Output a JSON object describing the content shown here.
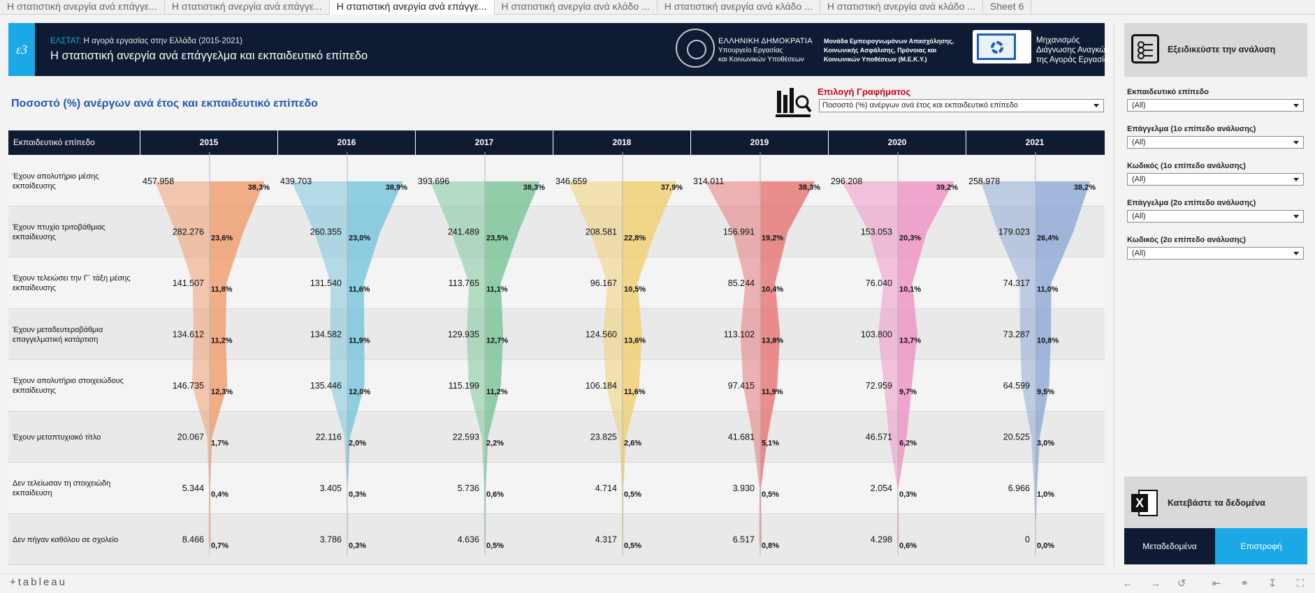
{
  "tabs": [
    {
      "label": "Η στατιστική ανεργία ανά επάγγε...",
      "active": false
    },
    {
      "label": "Η στατιστική ανεργία ανά επάγγε...",
      "active": false
    },
    {
      "label": "Η στατιστική ανεργία ανά επάγγε...",
      "active": true
    },
    {
      "label": "Η στατιστική ανεργία ανά κλάδο ...",
      "active": false
    },
    {
      "label": "Η στατιστική ανεργία ανά κλάδο ...",
      "active": false
    },
    {
      "label": "Η στατιστική ανεργία ανά κλάδο ...",
      "active": false
    },
    {
      "label": "Sheet 6",
      "active": false
    }
  ],
  "header": {
    "logo_text": "ε3",
    "kicker_source": "ΕΛΣΤΑΤ:",
    "kicker_text": "Η αγορά εργασίας στην Ελλάδα (2015-2021)",
    "title": "Η στατιστική ανεργία ανά επάγγελμα και εκπαιδευτικό επίπεδο",
    "ministry_line1": "ΕΛΛΗΝΙΚΗ ΔΗΜΟΚΡΑΤΙΑ",
    "ministry_line2": "Υπουργείο Εργασίας",
    "ministry_line3": "και Κοινωνικών Υποθέσεων",
    "meky_line1": "Μονάδα Εμπειρογνωμόνων Απασχόλησης,",
    "meky_line2": "Κοινωνικής Ασφάλισης, Πρόνοιας και",
    "meky_line3": "Κοινωνικών Υποθέσεων (Μ.Ε.Κ.Υ.)",
    "mech_line1": "Μηχανισμός",
    "mech_line2": "Διάγνωσης Αναγκών",
    "mech_line3": "της Αγοράς Εργασίας"
  },
  "section_title": "Ποσοστό (%) ανέργων ανά έτος και εκπαιδευτικό επίπεδο",
  "chart_selector": {
    "label": "Επιλογή Γραφήματος",
    "value": "Ποσοστό (%) ανέργων ανά έτος και εκπαιδευτικό επίπεδο"
  },
  "table_header": {
    "first": "Εκπαιδευτικό επίπεδο"
  },
  "chart_data": {
    "type": "table",
    "years": [
      "2015",
      "2016",
      "2017",
      "2018",
      "2019",
      "2020",
      "2021"
    ],
    "colors": [
      "#f0a072",
      "#7cc6dc",
      "#7fc69a",
      "#f1d077",
      "#e67a7a",
      "#ef97c8",
      "#92acd6"
    ],
    "levels": [
      {
        "label": "Έχουν απολυτήριο μέσης εκπαίδευσης",
        "counts": [
          "457.958",
          "439.703",
          "393.696",
          "346.659",
          "314.011",
          "296.208",
          "258.978"
        ],
        "pcts": [
          "38,3%",
          "38,9%",
          "38,3%",
          "37,9%",
          "38,3%",
          "39,2%",
          "38,2%"
        ],
        "pct_values": [
          38.3,
          38.9,
          38.3,
          37.9,
          38.3,
          39.2,
          38.2
        ]
      },
      {
        "label": "Έχουν πτυχίο τριτοβάθμιας εκπαίδευσης",
        "counts": [
          "282.276",
          "260.355",
          "241.489",
          "208.581",
          "156.991",
          "153.053",
          "179.023"
        ],
        "pcts": [
          "23,6%",
          "23,0%",
          "23,5%",
          "22,8%",
          "19,2%",
          "20,3%",
          "26,4%"
        ],
        "pct_values": [
          23.6,
          23.0,
          23.5,
          22.8,
          19.2,
          20.3,
          26.4
        ]
      },
      {
        "label": "Έχουν τελειώσει την Γ΄ τάξη μέσης εκπαίδευσης",
        "counts": [
          "141.507",
          "131.540",
          "113.765",
          "96.167",
          "85.244",
          "76.040",
          "74.317"
        ],
        "pcts": [
          "11,8%",
          "11,6%",
          "11,1%",
          "10,5%",
          "10,4%",
          "10,1%",
          "11,0%"
        ],
        "pct_values": [
          11.8,
          11.6,
          11.1,
          10.5,
          10.4,
          10.1,
          11.0
        ]
      },
      {
        "label": "Έχουν μεταδευτεροβάθμια επαγγελματική κατάρτιση",
        "counts": [
          "134.612",
          "134.582",
          "129.935",
          "124.560",
          "113.102",
          "103.800",
          "73.287"
        ],
        "pcts": [
          "11,2%",
          "11,9%",
          "12,7%",
          "13,6%",
          "13,8%",
          "13,7%",
          "10,8%"
        ],
        "pct_values": [
          11.2,
          11.9,
          12.7,
          13.6,
          13.8,
          13.7,
          10.8
        ]
      },
      {
        "label": "Έχουν απολυτήριο στοιχειώδους εκπαίδευσης",
        "counts": [
          "146.735",
          "135.446",
          "115.199",
          "106.184",
          "97.415",
          "72.959",
          "64.599"
        ],
        "pcts": [
          "12,3%",
          "12,0%",
          "11,2%",
          "11,6%",
          "11,9%",
          "9,7%",
          "9,5%"
        ],
        "pct_values": [
          12.3,
          12.0,
          11.2,
          11.6,
          11.9,
          9.7,
          9.5
        ]
      },
      {
        "label": "Έχουν μεταπτυχιακό τίτλο",
        "counts": [
          "20.067",
          "22.116",
          "22.593",
          "23.825",
          "41.681",
          "46.571",
          "20.525"
        ],
        "pcts": [
          "1,7%",
          "2,0%",
          "2,2%",
          "2,6%",
          "5,1%",
          "6,2%",
          "3,0%"
        ],
        "pct_values": [
          1.7,
          2.0,
          2.2,
          2.6,
          5.1,
          6.2,
          3.0
        ]
      },
      {
        "label": "Δεν τελείωσαν τη στοιχειώδη εκπαίδευση",
        "counts": [
          "5.344",
          "3.405",
          "5.736",
          "4.714",
          "3.930",
          "2.054",
          "6.966"
        ],
        "pcts": [
          "0,4%",
          "0,3%",
          "0,6%",
          "0,5%",
          "0,5%",
          "0,3%",
          "1,0%"
        ],
        "pct_values": [
          0.4,
          0.3,
          0.6,
          0.5,
          0.5,
          0.3,
          1.0
        ]
      },
      {
        "label": "Δεν πήγαν καθόλου σε σχολείο",
        "counts": [
          "8.466",
          "3.786",
          "4.636",
          "4.317",
          "6.517",
          "4.298",
          "0"
        ],
        "pcts": [
          "0,7%",
          "0,3%",
          "0,5%",
          "0,5%",
          "0,8%",
          "0,6%",
          "0,0%"
        ],
        "pct_values": [
          0.7,
          0.3,
          0.5,
          0.5,
          0.8,
          0.6,
          0.0
        ]
      }
    ]
  },
  "panel": {
    "refine_label": "Εξειδικεύστε την ανάλυση",
    "filters": [
      {
        "label": "Εκπαιδευτικό επίπεδο",
        "value": "(All)"
      },
      {
        "label": "Επάγγελμα (1ο επίπεδο ανάλυσης)",
        "value": "(All)"
      },
      {
        "label": "Κωδικός (1ο επίπεδο ανάλυσης)",
        "value": "(All)"
      },
      {
        "label": "Επάγγελμα (2ο επίπεδο ανάλυσης)",
        "value": "(All)"
      },
      {
        "label": "Κωδικός (2ο επίπεδο ανάλυσης)",
        "value": "(All)"
      }
    ],
    "download_label": "Κατεβάστε τα δεδομένα",
    "metadata_label": "Μεταδεδομένα",
    "back_label": "Επιστροφή"
  },
  "bottombar": {
    "logo": "+tableau",
    "icons": [
      "undo-icon",
      "redo-icon",
      "revert-icon",
      "reset-icon",
      "share-icon",
      "download-icon",
      "fullscreen-icon"
    ]
  }
}
